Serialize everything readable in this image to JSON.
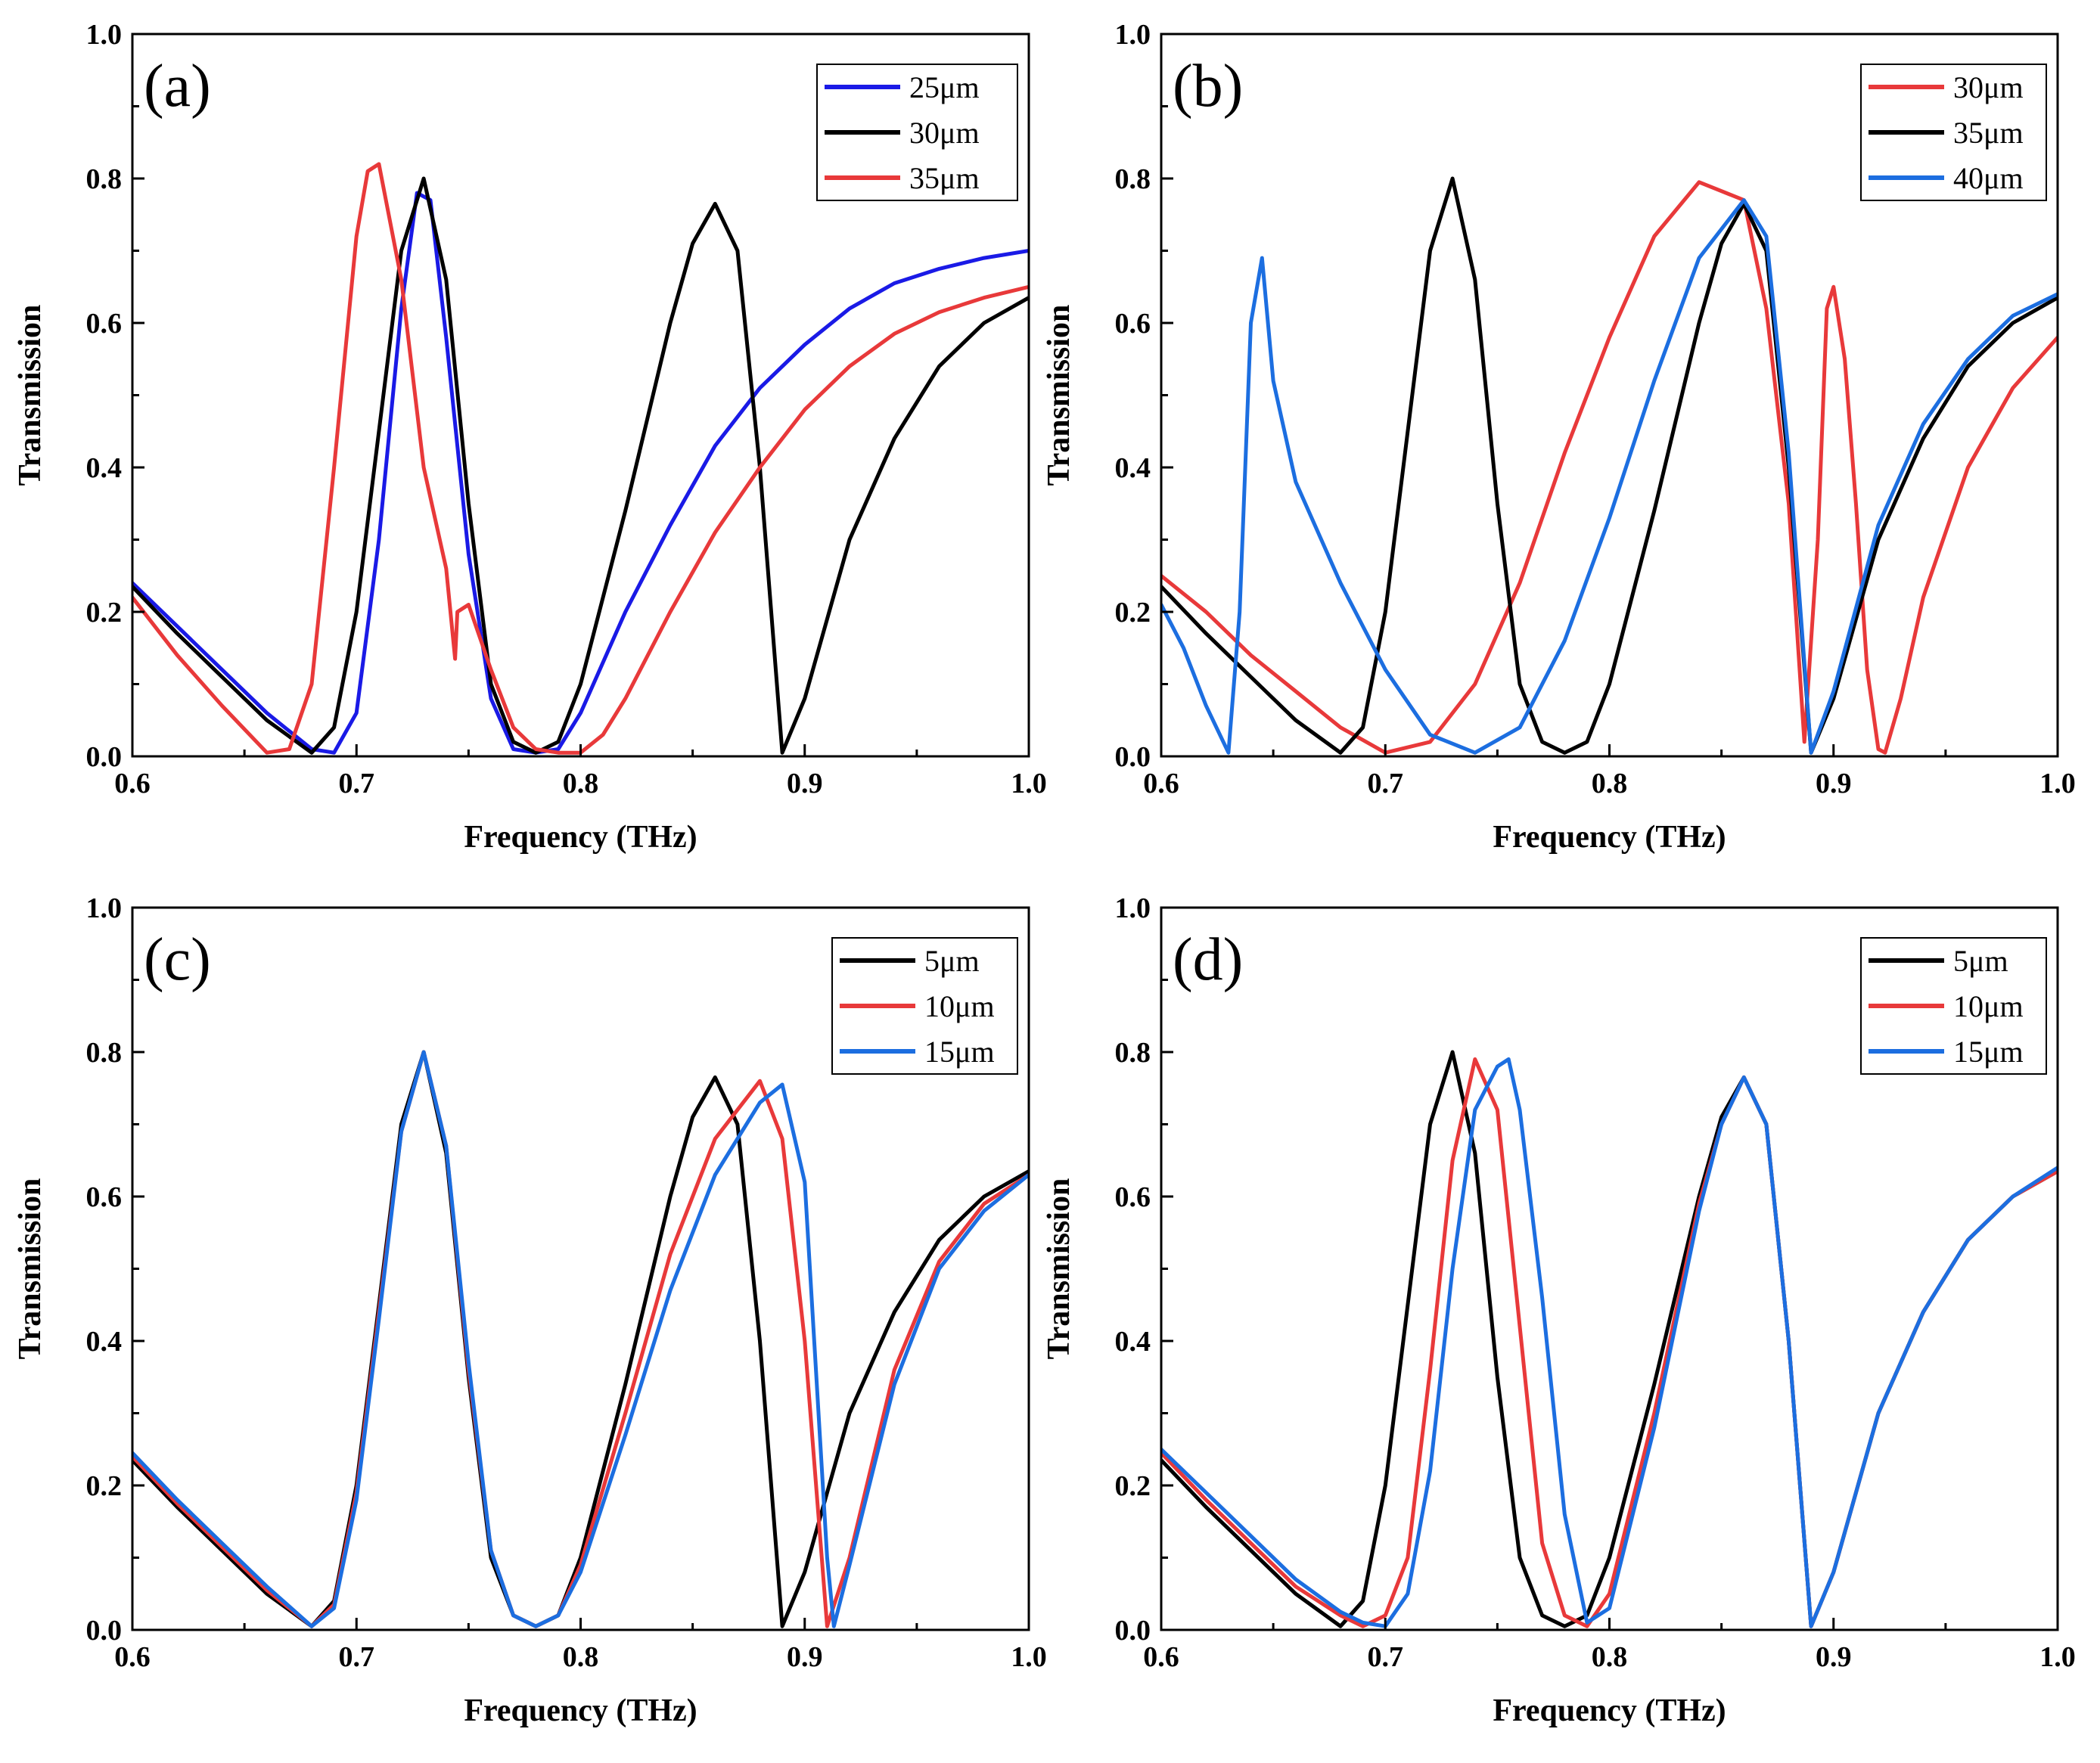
{
  "chart_data": [
    {
      "type": "line",
      "panel_label": "(a)",
      "xlabel": "Frequency (THz)",
      "ylabel": "Transmission",
      "xlim": [
        0.6,
        1.0
      ],
      "ylim": [
        0.0,
        1.0
      ],
      "xticks": [
        "0.6",
        "0.7",
        "0.8",
        "0.9",
        "1.0"
      ],
      "yticks": [
        "0.0",
        "0.2",
        "0.4",
        "0.6",
        "0.8",
        "1.0"
      ],
      "legend_position": "top-right",
      "series": [
        {
          "name": "25μm",
          "color": "#1a1ae6",
          "x": [
            0.6,
            0.62,
            0.64,
            0.66,
            0.68,
            0.69,
            0.7,
            0.71,
            0.72,
            0.727,
            0.733,
            0.74,
            0.75,
            0.76,
            0.77,
            0.78,
            0.79,
            0.8,
            0.82,
            0.84,
            0.86,
            0.88,
            0.9,
            0.92,
            0.94,
            0.96,
            0.98,
            1.0
          ],
          "y": [
            0.24,
            0.18,
            0.12,
            0.06,
            0.01,
            0.005,
            0.06,
            0.3,
            0.62,
            0.78,
            0.77,
            0.58,
            0.28,
            0.08,
            0.01,
            0.005,
            0.01,
            0.06,
            0.2,
            0.32,
            0.43,
            0.51,
            0.57,
            0.62,
            0.655,
            0.675,
            0.69,
            0.7
          ]
        },
        {
          "name": "30μm",
          "color": "#000000",
          "x": [
            0.6,
            0.62,
            0.64,
            0.66,
            0.68,
            0.69,
            0.7,
            0.71,
            0.72,
            0.73,
            0.74,
            0.75,
            0.76,
            0.77,
            0.78,
            0.79,
            0.8,
            0.82,
            0.84,
            0.85,
            0.86,
            0.87,
            0.88,
            0.89,
            0.9,
            0.92,
            0.94,
            0.96,
            0.98,
            1.0
          ],
          "y": [
            0.235,
            0.17,
            0.11,
            0.05,
            0.005,
            0.04,
            0.2,
            0.45,
            0.7,
            0.8,
            0.66,
            0.35,
            0.1,
            0.02,
            0.005,
            0.02,
            0.1,
            0.34,
            0.6,
            0.71,
            0.765,
            0.7,
            0.4,
            0.005,
            0.08,
            0.3,
            0.44,
            0.54,
            0.6,
            0.635
          ]
        },
        {
          "name": "35μm",
          "color": "#e8393a",
          "x": [
            0.6,
            0.62,
            0.64,
            0.66,
            0.67,
            0.68,
            0.69,
            0.7,
            0.705,
            0.71,
            0.72,
            0.73,
            0.74,
            0.744,
            0.745,
            0.75,
            0.76,
            0.77,
            0.78,
            0.79,
            0.8,
            0.81,
            0.82,
            0.84,
            0.86,
            0.88,
            0.9,
            0.92,
            0.94,
            0.96,
            0.98,
            1.0
          ],
          "y": [
            0.22,
            0.14,
            0.07,
            0.005,
            0.01,
            0.1,
            0.4,
            0.72,
            0.81,
            0.82,
            0.66,
            0.4,
            0.26,
            0.135,
            0.2,
            0.21,
            0.12,
            0.04,
            0.01,
            0.005,
            0.005,
            0.03,
            0.08,
            0.2,
            0.31,
            0.4,
            0.48,
            0.54,
            0.585,
            0.615,
            0.635,
            0.65
          ]
        }
      ]
    },
    {
      "type": "line",
      "panel_label": "(b)",
      "xlabel": "Frequency (THz)",
      "ylabel": "Transmission",
      "xlim": [
        0.6,
        1.0
      ],
      "ylim": [
        0.0,
        1.0
      ],
      "xticks": [
        "0.6",
        "0.7",
        "0.8",
        "0.9",
        "1.0"
      ],
      "yticks": [
        "0.0",
        "0.2",
        "0.4",
        "0.6",
        "0.8",
        "1.0"
      ],
      "legend_position": "top-right",
      "series": [
        {
          "name": "30μm",
          "color": "#e8393a",
          "x": [
            0.6,
            0.62,
            0.64,
            0.66,
            0.68,
            0.7,
            0.72,
            0.74,
            0.76,
            0.78,
            0.8,
            0.82,
            0.84,
            0.86,
            0.87,
            0.88,
            0.887,
            0.893,
            0.897,
            0.9,
            0.905,
            0.91,
            0.915,
            0.92,
            0.923,
            0.93,
            0.94,
            0.96,
            0.98,
            1.0
          ],
          "y": [
            0.25,
            0.2,
            0.14,
            0.09,
            0.04,
            0.005,
            0.02,
            0.1,
            0.24,
            0.42,
            0.58,
            0.72,
            0.795,
            0.77,
            0.62,
            0.35,
            0.02,
            0.3,
            0.62,
            0.65,
            0.55,
            0.35,
            0.12,
            0.01,
            0.005,
            0.08,
            0.22,
            0.4,
            0.51,
            0.58
          ]
        },
        {
          "name": "35μm",
          "color": "#000000",
          "x": [
            0.6,
            0.62,
            0.64,
            0.66,
            0.68,
            0.69,
            0.7,
            0.71,
            0.72,
            0.73,
            0.74,
            0.75,
            0.76,
            0.77,
            0.78,
            0.79,
            0.8,
            0.82,
            0.84,
            0.85,
            0.86,
            0.87,
            0.88,
            0.89,
            0.9,
            0.92,
            0.94,
            0.96,
            0.98,
            1.0
          ],
          "y": [
            0.235,
            0.17,
            0.11,
            0.05,
            0.005,
            0.04,
            0.2,
            0.45,
            0.7,
            0.8,
            0.66,
            0.35,
            0.1,
            0.02,
            0.005,
            0.02,
            0.1,
            0.34,
            0.6,
            0.71,
            0.765,
            0.7,
            0.4,
            0.005,
            0.08,
            0.3,
            0.44,
            0.54,
            0.6,
            0.635
          ]
        },
        {
          "name": "40μm",
          "color": "#1c6ee0",
          "x": [
            0.6,
            0.61,
            0.62,
            0.63,
            0.635,
            0.64,
            0.645,
            0.65,
            0.66,
            0.68,
            0.7,
            0.72,
            0.74,
            0.76,
            0.78,
            0.8,
            0.82,
            0.84,
            0.86,
            0.87,
            0.88,
            0.89,
            0.9,
            0.92,
            0.94,
            0.96,
            0.98,
            1.0
          ],
          "y": [
            0.21,
            0.15,
            0.07,
            0.005,
            0.2,
            0.6,
            0.69,
            0.52,
            0.38,
            0.24,
            0.12,
            0.03,
            0.005,
            0.04,
            0.16,
            0.33,
            0.52,
            0.69,
            0.77,
            0.72,
            0.42,
            0.005,
            0.09,
            0.32,
            0.46,
            0.55,
            0.61,
            0.64
          ]
        }
      ]
    },
    {
      "type": "line",
      "panel_label": "(c)",
      "xlabel": "Frequency (THz)",
      "ylabel": "Transmission",
      "xlim": [
        0.6,
        1.0
      ],
      "ylim": [
        0.0,
        1.0
      ],
      "xticks": [
        "0.6",
        "0.7",
        "0.8",
        "0.9",
        "1.0"
      ],
      "yticks": [
        "0.0",
        "0.2",
        "0.4",
        "0.6",
        "0.8",
        "1.0"
      ],
      "legend_position": "top-right",
      "series": [
        {
          "name": "5μm",
          "color": "#000000",
          "x": [
            0.6,
            0.62,
            0.64,
            0.66,
            0.68,
            0.69,
            0.7,
            0.71,
            0.72,
            0.73,
            0.74,
            0.75,
            0.76,
            0.77,
            0.78,
            0.79,
            0.8,
            0.82,
            0.84,
            0.85,
            0.86,
            0.87,
            0.88,
            0.89,
            0.9,
            0.92,
            0.94,
            0.96,
            0.98,
            1.0
          ],
          "y": [
            0.235,
            0.17,
            0.11,
            0.05,
            0.005,
            0.04,
            0.2,
            0.45,
            0.7,
            0.8,
            0.66,
            0.35,
            0.1,
            0.02,
            0.005,
            0.02,
            0.1,
            0.34,
            0.6,
            0.71,
            0.765,
            0.7,
            0.4,
            0.005,
            0.08,
            0.3,
            0.44,
            0.54,
            0.6,
            0.635
          ]
        },
        {
          "name": "10μm",
          "color": "#e8393a",
          "x": [
            0.6,
            0.62,
            0.64,
            0.66,
            0.68,
            0.69,
            0.7,
            0.71,
            0.72,
            0.73,
            0.74,
            0.75,
            0.76,
            0.77,
            0.78,
            0.79,
            0.8,
            0.82,
            0.84,
            0.86,
            0.88,
            0.89,
            0.9,
            0.91,
            0.92,
            0.94,
            0.96,
            0.98,
            1.0
          ],
          "y": [
            0.24,
            0.175,
            0.115,
            0.055,
            0.005,
            0.035,
            0.19,
            0.44,
            0.69,
            0.8,
            0.67,
            0.36,
            0.11,
            0.02,
            0.005,
            0.02,
            0.09,
            0.3,
            0.52,
            0.68,
            0.76,
            0.68,
            0.4,
            0.005,
            0.1,
            0.36,
            0.51,
            0.59,
            0.63
          ]
        },
        {
          "name": "15μm",
          "color": "#1c6ee0",
          "x": [
            0.6,
            0.62,
            0.64,
            0.66,
            0.68,
            0.69,
            0.7,
            0.71,
            0.72,
            0.73,
            0.74,
            0.75,
            0.76,
            0.77,
            0.78,
            0.79,
            0.8,
            0.82,
            0.84,
            0.86,
            0.88,
            0.89,
            0.9,
            0.91,
            0.913,
            0.92,
            0.94,
            0.96,
            0.98,
            1.0
          ],
          "y": [
            0.245,
            0.18,
            0.12,
            0.06,
            0.005,
            0.03,
            0.18,
            0.43,
            0.69,
            0.8,
            0.67,
            0.37,
            0.11,
            0.02,
            0.005,
            0.02,
            0.08,
            0.27,
            0.47,
            0.63,
            0.73,
            0.755,
            0.62,
            0.1,
            0.005,
            0.09,
            0.34,
            0.5,
            0.58,
            0.63
          ]
        }
      ]
    },
    {
      "type": "line",
      "panel_label": "(d)",
      "xlabel": "Frequency (THz)",
      "ylabel": "Transmission",
      "xlim": [
        0.6,
        1.0
      ],
      "ylim": [
        0.0,
        1.0
      ],
      "xticks": [
        "0.6",
        "0.7",
        "0.8",
        "0.9",
        "1.0"
      ],
      "yticks": [
        "0.0",
        "0.2",
        "0.4",
        "0.6",
        "0.8",
        "1.0"
      ],
      "legend_position": "top-right",
      "series": [
        {
          "name": "5μm",
          "color": "#000000",
          "x": [
            0.6,
            0.62,
            0.64,
            0.66,
            0.68,
            0.69,
            0.7,
            0.71,
            0.72,
            0.73,
            0.74,
            0.75,
            0.76,
            0.77,
            0.78,
            0.79,
            0.8,
            0.82,
            0.84,
            0.85,
            0.86,
            0.87,
            0.88,
            0.89,
            0.9,
            0.92,
            0.94,
            0.96,
            0.98,
            1.0
          ],
          "y": [
            0.235,
            0.17,
            0.11,
            0.05,
            0.005,
            0.04,
            0.2,
            0.45,
            0.7,
            0.8,
            0.66,
            0.35,
            0.1,
            0.02,
            0.005,
            0.02,
            0.1,
            0.34,
            0.6,
            0.71,
            0.765,
            0.7,
            0.4,
            0.005,
            0.08,
            0.3,
            0.44,
            0.54,
            0.6,
            0.635
          ]
        },
        {
          "name": "10μm",
          "color": "#e8393a",
          "x": [
            0.6,
            0.62,
            0.64,
            0.66,
            0.68,
            0.69,
            0.7,
            0.71,
            0.72,
            0.73,
            0.74,
            0.75,
            0.76,
            0.77,
            0.78,
            0.79,
            0.8,
            0.82,
            0.84,
            0.85,
            0.86,
            0.87,
            0.88,
            0.89,
            0.9,
            0.92,
            0.94,
            0.96,
            0.98,
            1.0
          ],
          "y": [
            0.245,
            0.18,
            0.12,
            0.06,
            0.02,
            0.005,
            0.02,
            0.1,
            0.36,
            0.65,
            0.79,
            0.72,
            0.42,
            0.12,
            0.02,
            0.005,
            0.05,
            0.3,
            0.59,
            0.7,
            0.765,
            0.7,
            0.4,
            0.005,
            0.08,
            0.3,
            0.44,
            0.54,
            0.6,
            0.635
          ]
        },
        {
          "name": "15μm",
          "color": "#1c6ee0",
          "x": [
            0.6,
            0.62,
            0.64,
            0.66,
            0.68,
            0.69,
            0.7,
            0.71,
            0.72,
            0.73,
            0.74,
            0.75,
            0.755,
            0.76,
            0.77,
            0.78,
            0.79,
            0.8,
            0.82,
            0.84,
            0.85,
            0.86,
            0.87,
            0.88,
            0.89,
            0.9,
            0.92,
            0.94,
            0.96,
            0.98,
            1.0
          ],
          "y": [
            0.25,
            0.19,
            0.13,
            0.07,
            0.025,
            0.01,
            0.005,
            0.05,
            0.22,
            0.5,
            0.72,
            0.78,
            0.79,
            0.72,
            0.46,
            0.16,
            0.01,
            0.03,
            0.28,
            0.58,
            0.7,
            0.765,
            0.7,
            0.4,
            0.005,
            0.08,
            0.3,
            0.44,
            0.54,
            0.6,
            0.64
          ]
        }
      ]
    }
  ]
}
